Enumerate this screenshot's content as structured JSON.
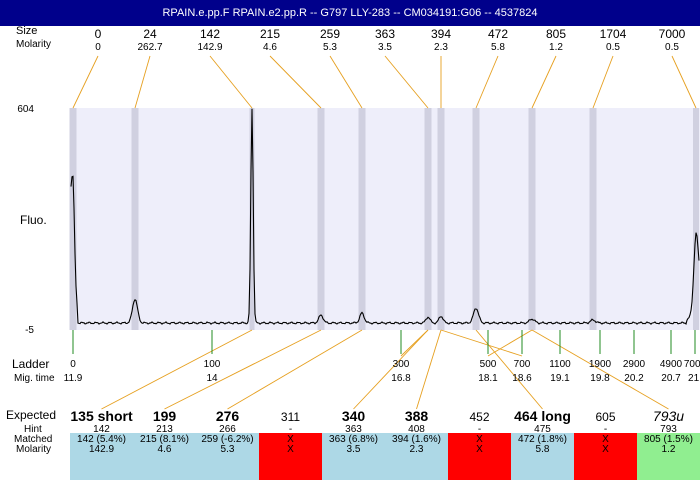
{
  "title": "RPAIN.e.pp.F  RPAIN.e2.pp.R -- G797 LLY-283 -- CM034191:G06 -- 4537824",
  "labels": {
    "size_row": "Size",
    "molarity_row": "Molarity",
    "fluo": "Fluo.",
    "ladder": "Ladder",
    "mig_time": "Mig. time",
    "expected": "Expected",
    "hint": "Hint",
    "matched": "Matched",
    "molarity_bottom": "Molarity"
  },
  "colors": {
    "title_bg": "#00008b",
    "plot_bg": "#eeeefa",
    "band": "#d0d0e0",
    "guide": "#e6a020",
    "ladder_tick": "#228b22",
    "trace": "#000000",
    "match_ok": "#add8e6",
    "match_missing": "#ff0000",
    "match_extra": "#90ee90"
  },
  "chart_data": {
    "type": "line",
    "ylabel": "Fluo.",
    "ylim": [
      -5,
      604
    ],
    "y_ticks": [
      "604",
      "-5"
    ],
    "peaks": [
      {
        "size": "0",
        "molarity": "0"
      },
      {
        "size": "24",
        "molarity": "262.7"
      },
      {
        "size": "142",
        "molarity": "142.9"
      },
      {
        "size": "215",
        "molarity": "4.6"
      },
      {
        "size": "259",
        "molarity": "5.3"
      },
      {
        "size": "363",
        "molarity": "3.5"
      },
      {
        "size": "394",
        "molarity": "2.3"
      },
      {
        "size": "472",
        "molarity": "5.8"
      },
      {
        "size": "805",
        "molarity": "1.2"
      },
      {
        "size": "1704",
        "molarity": "0.5"
      },
      {
        "size": "7000",
        "molarity": "0.5"
      }
    ],
    "ladder": [
      {
        "size": "0",
        "time": "11.9"
      },
      {
        "size": "100",
        "time": "14"
      },
      {
        "size": "300",
        "time": "16.8"
      },
      {
        "size": "500",
        "time": "18.1"
      },
      {
        "size": "700",
        "time": "18.6"
      },
      {
        "size": "1100",
        "time": "19.1"
      },
      {
        "size": "1900",
        "time": "19.8"
      },
      {
        "size": "2900",
        "time": "20.2"
      },
      {
        "size": "4900",
        "time": "20.7"
      },
      {
        "size": "7000",
        "time": "21."
      }
    ],
    "expected": [
      {
        "label": "135 short",
        "hint": "142",
        "matched": "142 (5.4%)",
        "molarity": "142.9",
        "status": "ok",
        "bold": true,
        "italic": false
      },
      {
        "label": "199",
        "hint": "213",
        "matched": "215 (8.1%)",
        "molarity": "4.6",
        "status": "ok",
        "bold": true,
        "italic": false
      },
      {
        "label": "276",
        "hint": "266",
        "matched": "259 (-6.2%)",
        "molarity": "5.3",
        "status": "ok",
        "bold": true,
        "italic": false
      },
      {
        "label": "311",
        "hint": "-",
        "matched": "X",
        "molarity": "X",
        "status": "missing",
        "bold": false,
        "italic": false
      },
      {
        "label": "340",
        "hint": "363",
        "matched": "363 (6.8%)",
        "molarity": "3.5",
        "status": "ok",
        "bold": true,
        "italic": false
      },
      {
        "label": "388",
        "hint": "408",
        "matched": "394 (1.6%)",
        "molarity": "2.3",
        "status": "ok",
        "bold": true,
        "italic": false
      },
      {
        "label": "452",
        "hint": "-",
        "matched": "X",
        "molarity": "X",
        "status": "missing",
        "bold": false,
        "italic": false
      },
      {
        "label": "464 long",
        "hint": "475",
        "matched": "472 (1.8%)",
        "molarity": "5.8",
        "status": "ok",
        "bold": true,
        "italic": false
      },
      {
        "label": "605",
        "hint": "-",
        "matched": "X",
        "molarity": "X",
        "status": "missing",
        "bold": false,
        "italic": false
      },
      {
        "label": "793u",
        "hint": "793",
        "matched": "805 (1.5%)",
        "molarity": "1.2",
        "status": "extra",
        "bold": false,
        "italic": true
      }
    ]
  }
}
